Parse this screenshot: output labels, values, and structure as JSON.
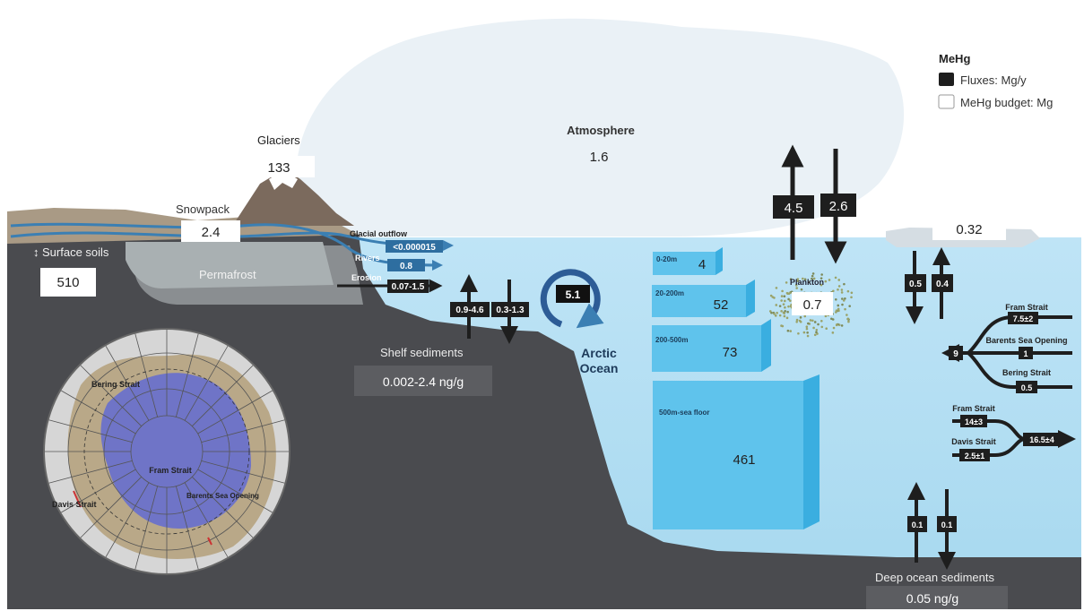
{
  "legend": {
    "title": "MeHg",
    "fluxes": "Fluxes: Mg/y",
    "budget": "MeHg budget: Mg",
    "flux_color": "#1e1e1e",
    "budget_color": "#ffffff"
  },
  "atmosphere": {
    "label": "Atmosphere",
    "value": "1.6"
  },
  "glaciers": {
    "label": "Glaciers",
    "value": "133"
  },
  "snowpack": {
    "label": "Snowpack",
    "value": "2.4"
  },
  "surface_soils": {
    "label": "Surface soils",
    "value": "510"
  },
  "permafrost": {
    "label": "Permafrost"
  },
  "land_fluxes": {
    "glacial_outflow_label": "Glacial outflow",
    "glacial_outflow_value": "<0.000015",
    "rivers_label": "Rivers",
    "rivers_value": "0.8",
    "erosion_label": "Erosion",
    "erosion_value": "0.07-1.5"
  },
  "shelf": {
    "up_value": "0.9-4.6",
    "down_value": "0.3-1.3",
    "label": "Shelf sediments",
    "concentration": "0.002-2.4 ng/g"
  },
  "arctic_ocean": {
    "label_line1": "Arctic",
    "label_line2": "Ocean",
    "cycle_value": "5.1"
  },
  "water_layers": [
    {
      "depth": "0-20m",
      "value": "4"
    },
    {
      "depth": "20-200m",
      "value": "52"
    },
    {
      "depth": "200-500m",
      "value": "73"
    },
    {
      "depth": "500m-sea floor",
      "value": "461"
    }
  ],
  "air_sea": {
    "up_value": "4.5",
    "down_value": "2.6"
  },
  "plankton": {
    "label": "Plankton",
    "value": "0.7"
  },
  "sea_ice": {
    "value": "0.32",
    "down_value": "0.5",
    "up_value": "0.4"
  },
  "gateways_out": {
    "total": "9",
    "fram_label": "Fram Strait",
    "fram_value": "7.5±2",
    "barents_label": "Barents Sea Opening",
    "barents_value": "1",
    "bering_label": "Bering Strait",
    "bering_value": "0.5"
  },
  "gateways_in": {
    "fram_label": "Fram Strait",
    "fram_value": "14±3",
    "davis_label": "Davis Strait",
    "davis_value": "2.5±1",
    "total": "16.5±4"
  },
  "deep_ocean": {
    "up_value": "0.1",
    "down_value": "0.1",
    "label": "Deep ocean sediments",
    "concentration": "0.05 ng/g"
  },
  "map": {
    "bering": "Bering Strait",
    "fram": "Fram Strait",
    "barents": "Barents Sea Opening",
    "davis": "Davis Strait"
  }
}
